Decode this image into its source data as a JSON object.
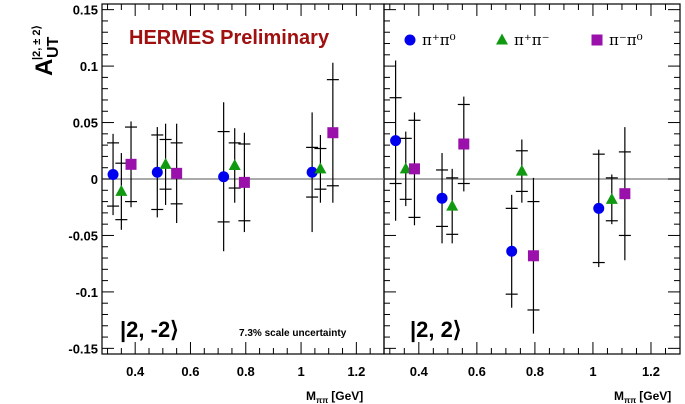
{
  "chart_data": {
    "type": "scatter",
    "title": "HERMES Preliminary",
    "ylabel": {
      "main": "A",
      "sub": "UT",
      "sup": "|2, ± 2⟩"
    },
    "xlabel": {
      "main": "M",
      "sub": "ππ",
      "unit": "[GeV]"
    },
    "ylim": [
      -0.155,
      0.155
    ],
    "xlim": [
      0.28,
      1.3
    ],
    "yticks": [
      "0.15",
      "0.1",
      "0.05",
      "0",
      "-0.05",
      "-0.1",
      "-0.15"
    ],
    "xticks": [
      "0.4",
      "0.6",
      "0.8",
      "1",
      "1.2"
    ],
    "scale_note": "7.3% scale uncertainty",
    "legend": [
      {
        "key": "pipi0",
        "label": "π⁺π⁰",
        "marker": "circle",
        "color": "#0000ee"
      },
      {
        "key": "pipm",
        "label": "π⁺π⁻",
        "marker": "triangle",
        "color": "#119911"
      },
      {
        "key": "pimpi0",
        "label": "π⁻π⁰",
        "marker": "square",
        "color": "#9911aa"
      }
    ],
    "panels": [
      {
        "label": "|2, -2⟩",
        "series": [
          {
            "key": "pipi0",
            "x": [
              0.32,
              0.48,
              0.72,
              1.04
            ],
            "y": [
              0.004,
              0.006,
              0.002,
              0.006
            ],
            "stat": [
              0.028,
              0.033,
              0.04,
              0.022
            ],
            "total": [
              0.036,
              0.04,
              0.066,
              0.053
            ]
          },
          {
            "key": "pipm",
            "x": [
              0.35,
              0.51,
              0.76,
              1.07
            ],
            "y": [
              -0.011,
              0.013,
              0.012,
              0.009
            ],
            "stat": [
              0.025,
              0.022,
              0.02,
              0.018
            ],
            "total": [
              0.034,
              0.036,
              0.033,
              0.03
            ]
          },
          {
            "key": "pimpi0",
            "x": [
              0.385,
              0.55,
              0.795,
              1.115
            ],
            "y": [
              0.013,
              0.005,
              -0.003,
              0.041
            ],
            "stat": [
              0.033,
              0.027,
              0.034,
              0.047
            ],
            "total": [
              0.038,
              0.044,
              0.044,
              0.062
            ]
          }
        ]
      },
      {
        "label": "|2, 2⟩",
        "series": [
          {
            "key": "pipi0",
            "x": [
              0.32,
              0.48,
              0.72,
              1.02
            ],
            "y": [
              0.034,
              -0.017,
              -0.064,
              -0.026
            ],
            "stat": [
              0.038,
              0.025,
              0.038,
              0.048
            ],
            "total": [
              0.071,
              0.04,
              0.05,
              0.052
            ]
          },
          {
            "key": "pipm",
            "x": [
              0.355,
              0.515,
              0.755,
              1.065
            ],
            "y": [
              0.009,
              -0.024,
              0.007,
              -0.018
            ],
            "stat": [
              0.027,
              0.025,
              0.018,
              0.019
            ],
            "total": [
              0.033,
              0.033,
              0.028,
              0.022
            ]
          },
          {
            "key": "pimpi0",
            "x": [
              0.385,
              0.555,
              0.795,
              1.11
            ],
            "y": [
              0.009,
              0.031,
              -0.068,
              -0.013
            ],
            "stat": [
              0.043,
              0.035,
              0.048,
              0.037
            ],
            "total": [
              0.05,
              0.042,
              0.069,
              0.059
            ]
          }
        ]
      }
    ]
  }
}
